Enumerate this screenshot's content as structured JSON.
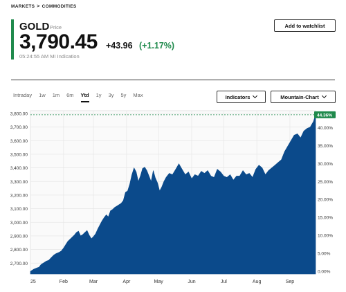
{
  "breadcrumb": {
    "items": [
      "MARKETS",
      "COMMODITIES"
    ],
    "separator": ">"
  },
  "quote": {
    "symbol": "GOLD",
    "symbol_sub": "Price",
    "price": "3,790.45",
    "change": "+43.96",
    "change_pct": "(+1.17%)",
    "time": "05:24:55 AM  MI Indication"
  },
  "actions": {
    "watchlist": "Add to watchlist"
  },
  "ranges": [
    "Intraday",
    "1w",
    "1m",
    "6m",
    "Ytd",
    "1y",
    "3y",
    "5y",
    "Max"
  ],
  "active_range": "Ytd",
  "controls": {
    "indicators": "Indicators",
    "chart_type": "Mountain-Chart"
  },
  "colors": {
    "area": "#0b4a8b",
    "up": "#1f8a4c",
    "grid": "#e6e6e6"
  },
  "chart_data": {
    "type": "area",
    "y_ticks": [
      "3,800.00",
      "3,700.00",
      "3,600.00",
      "3,500.00",
      "3,400.00",
      "3,300.00",
      "3,200.00",
      "3,100.00",
      "3,000.00",
      "2,900.00",
      "2,800.00",
      "2,700.00"
    ],
    "y_tick_values": [
      3800,
      3700,
      3600,
      3500,
      3400,
      3300,
      3200,
      3100,
      3000,
      2900,
      2800,
      2700
    ],
    "pct_ticks": [
      "40.00%",
      "35.00%",
      "30.00%",
      "25.00%",
      "20.00%",
      "15.00%",
      "10.00%",
      "5.00%",
      "0.00%"
    ],
    "pct_tick_values": [
      40,
      35,
      30,
      25,
      20,
      15,
      10,
      5,
      0
    ],
    "x_ticks": [
      "25",
      "Feb",
      "Mar",
      "Apr",
      "May",
      "Jun",
      "Jul",
      "Aug",
      "Sep"
    ],
    "x_tick_days": [
      0,
      31,
      59,
      90,
      120,
      151,
      181,
      212,
      243
    ],
    "end_label": "44.36%",
    "ylim": [
      2620,
      3820
    ],
    "xlim": [
      0,
      267
    ],
    "grid": true,
    "series": [
      {
        "x": [
          0,
          3,
          6,
          8,
          10,
          13,
          15,
          17,
          20,
          22,
          24,
          27,
          29,
          31,
          33,
          35,
          37,
          39,
          41,
          43,
          45,
          47,
          49,
          51,
          53,
          55,
          57,
          59,
          61,
          63,
          65,
          67,
          69,
          71,
          73,
          75,
          77,
          79,
          81,
          83,
          85,
          87,
          89,
          91,
          93,
          95,
          97,
          99,
          101,
          103,
          105,
          107,
          109,
          111,
          113,
          115,
          117,
          119,
          121,
          123,
          125,
          127,
          130,
          133,
          136,
          139,
          142,
          145,
          148,
          151,
          154,
          157,
          160,
          163,
          166,
          169,
          172,
          175,
          178,
          181,
          184,
          187,
          190,
          193,
          196,
          199,
          202,
          205,
          208,
          211,
          214,
          217,
          220,
          223,
          226,
          229,
          232,
          235,
          238,
          241,
          244,
          247,
          250,
          253,
          256,
          259,
          262,
          265,
          267
        ],
        "values": [
          2640,
          2655,
          2665,
          2670,
          2690,
          2705,
          2715,
          2720,
          2745,
          2760,
          2770,
          2780,
          2790,
          2810,
          2835,
          2860,
          2875,
          2890,
          2905,
          2925,
          2935,
          2900,
          2910,
          2925,
          2940,
          2905,
          2880,
          2895,
          2915,
          2950,
          2980,
          3010,
          3035,
          3055,
          3040,
          3085,
          3095,
          3110,
          3120,
          3130,
          3140,
          3160,
          3220,
          3230,
          3280,
          3350,
          3400,
          3370,
          3300,
          3340,
          3395,
          3405,
          3380,
          3340,
          3300,
          3380,
          3325,
          3290,
          3230,
          3260,
          3300,
          3330,
          3360,
          3350,
          3390,
          3430,
          3390,
          3350,
          3370,
          3320,
          3350,
          3340,
          3375,
          3360,
          3380,
          3340,
          3330,
          3390,
          3370,
          3340,
          3330,
          3350,
          3310,
          3340,
          3340,
          3380,
          3350,
          3360,
          3330,
          3390,
          3420,
          3400,
          3350,
          3380,
          3400,
          3420,
          3440,
          3460,
          3520,
          3560,
          3600,
          3640,
          3650,
          3620,
          3670,
          3690,
          3700,
          3740,
          3790
        ]
      }
    ]
  }
}
